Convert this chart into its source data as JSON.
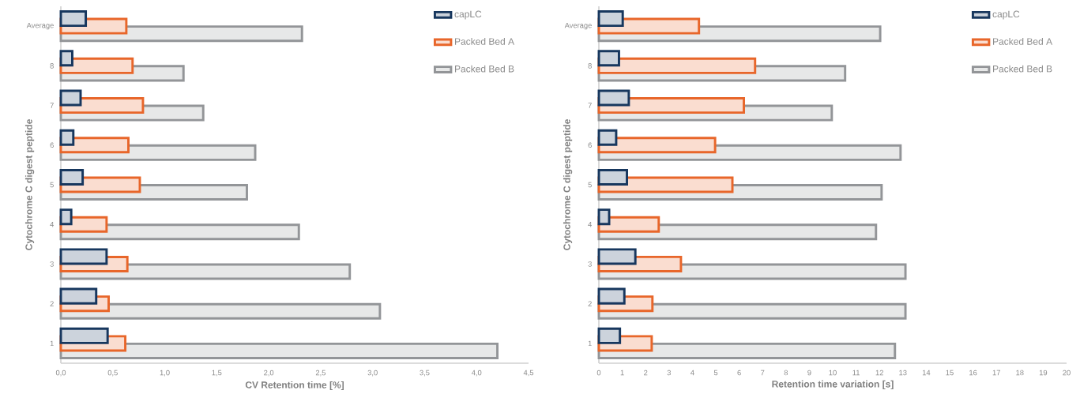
{
  "chart_data": [
    {
      "type": "bar",
      "orientation": "horizontal",
      "categories": [
        "Average",
        "8",
        "7",
        "6",
        "5",
        "4",
        "3",
        "2",
        "1"
      ],
      "series": [
        {
          "name": "capLC",
          "color": "#17375e",
          "values": [
            0.24,
            0.11,
            0.19,
            0.12,
            0.21,
            0.1,
            0.44,
            0.34,
            0.45
          ]
        },
        {
          "name": "Packed Bed A",
          "color": "#e8662a",
          "values": [
            0.63,
            0.69,
            0.79,
            0.65,
            0.76,
            0.44,
            0.64,
            0.46,
            0.62
          ]
        },
        {
          "name": "Packed Bed B",
          "color": "#939598",
          "values": [
            2.32,
            1.18,
            1.37,
            1.87,
            1.79,
            2.29,
            2.78,
            3.07,
            4.2
          ]
        }
      ],
      "xlim": [
        0,
        4.5
      ],
      "xticks": [
        {
          "value": 0,
          "label": "0,0"
        },
        {
          "value": 0.5,
          "label": "0,5"
        },
        {
          "value": 1,
          "label": "1,0"
        },
        {
          "value": 1.5,
          "label": "1,5"
        },
        {
          "value": 2,
          "label": "2,0"
        },
        {
          "value": 2.5,
          "label": "2,5"
        },
        {
          "value": 3,
          "label": "3,0"
        },
        {
          "value": 3.5,
          "label": "3,5"
        },
        {
          "value": 4,
          "label": "4,0"
        },
        {
          "value": 4.5,
          "label": "4,5"
        }
      ],
      "xlabel": "CV Retention time [%]",
      "ylabel": "Cytochrome C digest peptide",
      "legend": "top right"
    },
    {
      "type": "bar",
      "orientation": "horizontal",
      "categories": [
        "Average",
        "8",
        "7",
        "6",
        "5",
        "4",
        "3",
        "2",
        "1"
      ],
      "series": [
        {
          "name": "capLC",
          "color": "#17375e",
          "values": [
            1.02,
            0.86,
            1.28,
            0.74,
            1.2,
            0.44,
            1.56,
            1.09,
            0.9
          ]
        },
        {
          "name": "Packed Bed A",
          "color": "#e8662a",
          "values": [
            4.28,
            6.68,
            6.2,
            4.97,
            5.71,
            2.56,
            3.51,
            2.29,
            2.26
          ]
        },
        {
          "name": "Packed Bed B",
          "color": "#939598",
          "values": [
            12.03,
            10.53,
            9.96,
            12.9,
            12.09,
            11.85,
            13.11,
            13.11,
            12.66
          ]
        }
      ],
      "xlim": [
        0,
        20
      ],
      "xticks": [
        0,
        1,
        2,
        3,
        4,
        5,
        6,
        7,
        8,
        9,
        10,
        11,
        12,
        13,
        14,
        15,
        16,
        17,
        18,
        19,
        20
      ],
      "xlabel": "Retention time variation [s]",
      "ylabel": "Cytochrome C digest peptide",
      "legend": "top right"
    }
  ]
}
